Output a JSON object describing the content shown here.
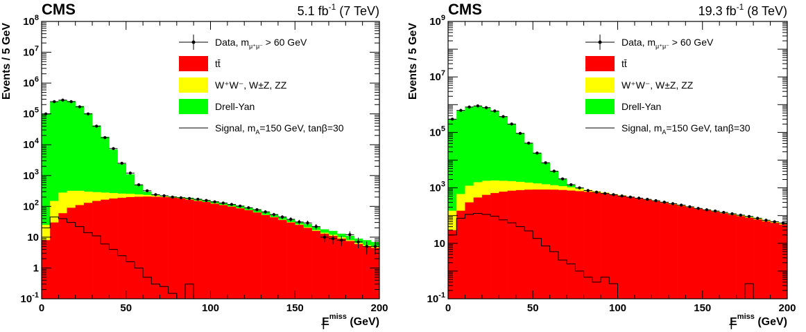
{
  "chart_data": [
    {
      "type": "histogram-stack",
      "experiment": "CMS",
      "lumi_label": "5.1 fb",
      "lumi_exp": "-1",
      "energy_label": "(7 TeV)",
      "xlabel": "E",
      "xlabel_sup": "miss",
      "xlabel_sub": "T",
      "xlabel_unit": "(GeV)",
      "ylabel": "Events / 5 GeV",
      "log_scale": true,
      "xlim": [
        0,
        200
      ],
      "ylim": [
        0.1,
        100000000
      ],
      "x_ticks": [
        "0",
        "50",
        "100",
        "150",
        "200"
      ],
      "y_ticks": [
        {
          "value": 0.1,
          "base": "10",
          "exp": "-1"
        },
        {
          "value": 1,
          "base": "1",
          "exp": ""
        },
        {
          "value": 10,
          "base": "10",
          "exp": ""
        },
        {
          "value": 100,
          "base": "10",
          "exp": "2"
        },
        {
          "value": 1000,
          "base": "10",
          "exp": "3"
        },
        {
          "value": 10000,
          "base": "10",
          "exp": "4"
        },
        {
          "value": 100000,
          "base": "10",
          "exp": "5"
        },
        {
          "value": 1000000,
          "base": "10",
          "exp": "6"
        },
        {
          "value": 10000000,
          "base": "10",
          "exp": "7"
        },
        {
          "value": 100000000,
          "base": "10",
          "exp": "8"
        }
      ],
      "legend": [
        {
          "key": "data",
          "label": "Data, m",
          "sub": "μ⁺μ⁻",
          "suffix": " > 60 GeV"
        },
        {
          "key": "ttbar",
          "label": "tt̄",
          "color": "#ff0000"
        },
        {
          "key": "diboson",
          "label": "W⁺W⁻, W±Z, ZZ",
          "color": "#ffff00"
        },
        {
          "key": "dy",
          "label": "Drell-Yan",
          "color": "#00ff00"
        },
        {
          "key": "signal",
          "label": "Signal, m",
          "sub": "A",
          "suffix": "=150 GeV, tanβ=30"
        }
      ],
      "bin_width": 5,
      "stack_total": [
        100000,
        250000,
        280000,
        260000,
        180000,
        105000,
        42000,
        18000,
        7000,
        2400,
        1100,
        500,
        300,
        240,
        220,
        210,
        200,
        190,
        175,
        160,
        145,
        130,
        118,
        105,
        92,
        80,
        68,
        56,
        46,
        38,
        32,
        27,
        22,
        18,
        16,
        13,
        11,
        9,
        8,
        7
      ],
      "ttbar_diboson": [
        25,
        150,
        280,
        320,
        320,
        300,
        290,
        280,
        270,
        260,
        255,
        245,
        235,
        225,
        210,
        195,
        185,
        170,
        155,
        140,
        125,
        112,
        100,
        88,
        76,
        64,
        53,
        45,
        37,
        31,
        26,
        21,
        17,
        14,
        12,
        10,
        8,
        6.5,
        5.5,
        5
      ],
      "ttbar": [
        8,
        30,
        60,
        90,
        110,
        130,
        150,
        165,
        180,
        190,
        200,
        205,
        208,
        205,
        200,
        190,
        180,
        165,
        150,
        138,
        122,
        110,
        98,
        86,
        75,
        63,
        52,
        44,
        36,
        30,
        25,
        20,
        16,
        13,
        11,
        9,
        7.5,
        6,
        5,
        4.5
      ],
      "signal": [
        20,
        45,
        40,
        30,
        22,
        14,
        11,
        6,
        4,
        2.5,
        1.6,
        1,
        0.5,
        0.3,
        0.25,
        0.15,
        0.1,
        0.3,
        0.1,
        0.1,
        0.1,
        0.1,
        0.1,
        0.1,
        0.1,
        0.1,
        0.1,
        0.1,
        0.1,
        0.1,
        0.1,
        0.1,
        0.1,
        0.1,
        0.1,
        0.1,
        0.1,
        0.1,
        0.1,
        0.1
      ],
      "data_points": [
        100000,
        250000,
        280000,
        250000,
        170000,
        100000,
        40000,
        17000,
        7500,
        2500,
        1200,
        500,
        320,
        240,
        220,
        200,
        190,
        180,
        170,
        155,
        140,
        128,
        115,
        102,
        90,
        78,
        66,
        54,
        45,
        38,
        31,
        29,
        22,
        10,
        9,
        8,
        12,
        7,
        5,
        5
      ]
    },
    {
      "type": "histogram-stack",
      "experiment": "CMS",
      "lumi_label": "19.3 fb",
      "lumi_exp": "-1",
      "energy_label": "(8 TeV)",
      "xlabel": "E",
      "xlabel_sup": "miss",
      "xlabel_sub": "T",
      "xlabel_unit": "(GeV)",
      "ylabel": "Events / 5 GeV",
      "log_scale": true,
      "xlim": [
        0,
        200
      ],
      "ylim": [
        0.1,
        1000000000
      ],
      "x_ticks": [
        "0",
        "50",
        "100",
        "150",
        "200"
      ],
      "y_ticks": [
        {
          "value": 0.1,
          "base": "10",
          "exp": "-1"
        },
        {
          "value": 10,
          "base": "10",
          "exp": ""
        },
        {
          "value": 1000,
          "base": "10",
          "exp": "3"
        },
        {
          "value": 100000,
          "base": "10",
          "exp": "5"
        },
        {
          "value": 10000000,
          "base": "10",
          "exp": "7"
        },
        {
          "value": 1000000000,
          "base": "10",
          "exp": "9"
        }
      ],
      "legend": [
        {
          "key": "data",
          "label": "Data, m",
          "sub": "μ⁺μ⁻",
          "suffix": " > 60 GeV"
        },
        {
          "key": "ttbar",
          "label": "tt̄",
          "color": "#ff0000"
        },
        {
          "key": "diboson",
          "label": "W⁺W⁻, W±Z, ZZ",
          "color": "#ffff00"
        },
        {
          "key": "dy",
          "label": "Drell-Yan",
          "color": "#00ff00"
        },
        {
          "key": "signal",
          "label": "Signal, m",
          "sub": "A",
          "suffix": "=150 GeV, tanβ=30"
        }
      ],
      "bin_width": 5,
      "stack_total": [
        300000,
        600000,
        800000,
        900000,
        800000,
        600000,
        380000,
        200000,
        95000,
        42000,
        18000,
        8200,
        4000,
        2100,
        1300,
        1000,
        820,
        720,
        640,
        580,
        520,
        470,
        430,
        390,
        350,
        310,
        275,
        240,
        210,
        185,
        165,
        148,
        132,
        118,
        105,
        94,
        82,
        70,
        62,
        55
      ],
      "ttbar_diboson": [
        150,
        600,
        1200,
        1600,
        1800,
        1850,
        1800,
        1750,
        1650,
        1550,
        1450,
        1350,
        1250,
        1150,
        1050,
        940,
        850,
        760,
        680,
        600,
        540,
        480,
        430,
        380,
        340,
        300,
        265,
        232,
        204,
        180,
        160,
        142,
        126,
        112,
        100,
        88,
        77,
        66,
        58,
        52
      ],
      "ttbar": [
        30,
        150,
        300,
        450,
        560,
        650,
        730,
        790,
        830,
        860,
        870,
        870,
        860,
        840,
        800,
        760,
        720,
        670,
        620,
        560,
        510,
        460,
        410,
        370,
        330,
        290,
        255,
        225,
        198,
        175,
        155,
        138,
        122,
        108,
        96,
        84,
        73,
        62,
        55,
        48
      ],
      "signal": [
        20,
        80,
        110,
        120,
        110,
        95,
        70,
        55,
        40,
        28,
        15,
        8,
        5,
        2.5,
        1.8,
        1,
        0.6,
        0.4,
        0.6,
        0.35,
        0.1,
        0.1,
        0.1,
        0.1,
        0.1,
        0.1,
        0.1,
        0.1,
        0.1,
        0.1,
        0.1,
        0.1,
        0.1,
        0.1,
        0.1,
        0.35,
        0.1,
        0.1,
        0.1,
        0.1
      ],
      "data_points": [
        300000,
        620000,
        820000,
        900000,
        780000,
        590000,
        370000,
        200000,
        92000,
        41000,
        18000,
        8000,
        4000,
        2100,
        1300,
        1000,
        800,
        700,
        630,
        570,
        510,
        465,
        425,
        385,
        345,
        305,
        270,
        238,
        208,
        182,
        162,
        146,
        130,
        116,
        104,
        93,
        80,
        68,
        60,
        54
      ]
    }
  ]
}
